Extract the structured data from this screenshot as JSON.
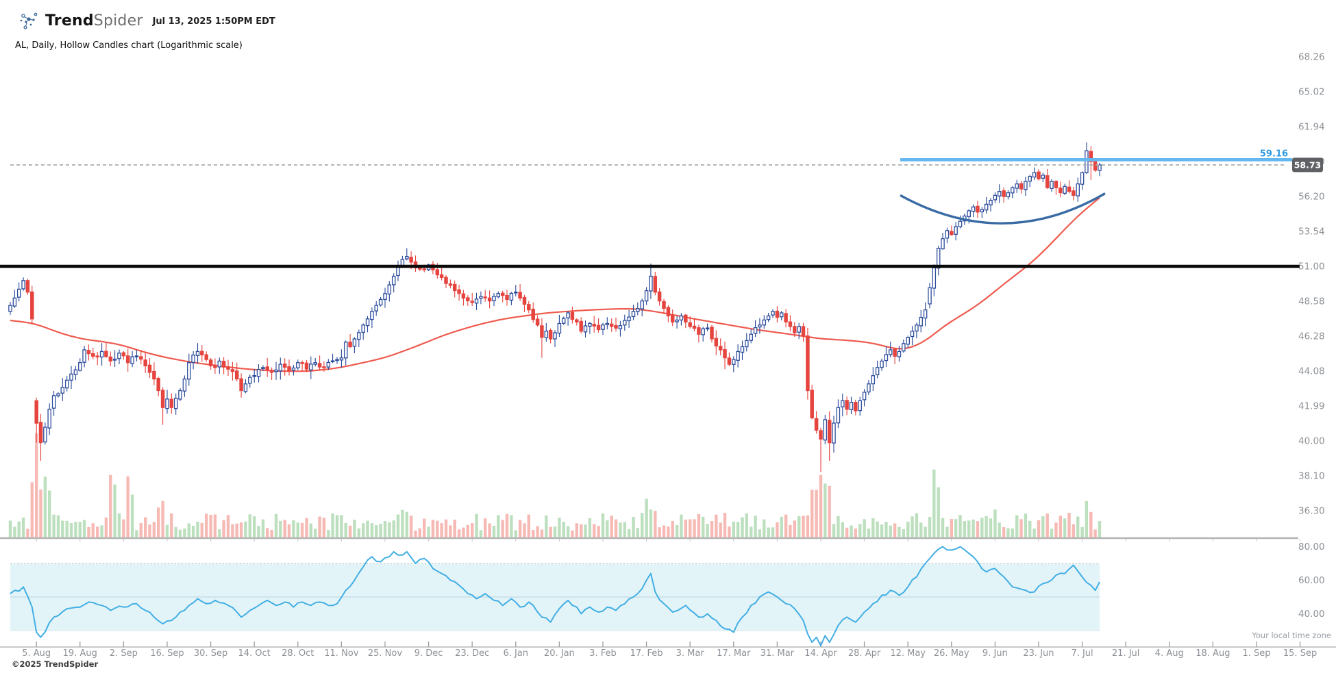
{
  "header": {
    "brand_bold": "Trend",
    "brand_light": "Spider",
    "timestamp": "Jul 13, 2025 1:50PM EDT",
    "subtitle": "AL, Daily, Hollow Candles chart (Logarithmic scale)"
  },
  "footer": {
    "copyright": "©2025 TrendSpider",
    "timezone_note": "Your local time zone"
  },
  "price_axis": {
    "labels": [
      "68.26",
      "65.02",
      "61.94",
      "59.00",
      "56.20",
      "53.54",
      "51.00",
      "48.58",
      "46.28",
      "44.08",
      "41.99",
      "40.00",
      "38.10",
      "36.30"
    ]
  },
  "indicator_axis": {
    "labels": [
      "80.00",
      "60.00",
      "40.00"
    ]
  },
  "x_axis": {
    "labels": [
      "5. Aug",
      "19. Aug",
      "2. Sep",
      "16. Sep",
      "30. Sep",
      "14. Oct",
      "28. Oct",
      "11. Nov",
      "25. Nov",
      "9. Dec",
      "23. Dec",
      "6. Jan",
      "20. Jan",
      "3. Feb",
      "17. Feb",
      "3. Mar",
      "17. Mar",
      "31. Mar",
      "14. Apr",
      "28. Apr",
      "12. May",
      "26. May",
      "9. Jun",
      "23. Jun",
      "7. Jul",
      "21. Jul",
      "4. Aug",
      "18. Aug",
      "1. Sep",
      "15. Sep"
    ]
  },
  "colors": {
    "up_candle": "#2a4a9b",
    "down_candle": "#e6443e",
    "volume_up": "#bcdfbe",
    "volume_down": "#f6b9b4",
    "sma_line": "#ef5a4e",
    "rsi_line": "#41aee4",
    "rsi_band_fill": "#e3f4f9",
    "resistance_line": "#66b7f0",
    "resistance_label": "#2f99e0",
    "black_level_line": "#0a0a0a",
    "dashed_price_line": "#ababab",
    "badge_bg": "#5f6164",
    "badge_text": "#ffffff",
    "axis_text": "#8d9196",
    "cup_annotation": "#3a6ba5"
  },
  "chart_data": {
    "type": "candlestick",
    "symbol": "AL",
    "timeframe": "Daily",
    "style": "Hollow Candles",
    "scale": "Logarithmic",
    "num_bars": 251,
    "y_ticks": [
      68.26,
      65.02,
      61.94,
      59.0,
      56.2,
      53.54,
      51.0,
      48.58,
      46.28,
      44.08,
      41.99,
      40.0,
      38.1,
      36.3
    ],
    "indicator": {
      "name": "RSI",
      "ticks": [
        80,
        60,
        40
      ],
      "band": {
        "upper": 70,
        "mid": 50,
        "lower": 30
      },
      "anchors": [
        [
          0,
          52
        ],
        [
          3,
          56
        ],
        [
          5,
          44
        ],
        [
          6,
          29
        ],
        [
          7,
          26
        ],
        [
          10,
          38
        ],
        [
          13,
          43
        ],
        [
          16,
          44
        ],
        [
          18,
          47
        ],
        [
          21,
          45
        ],
        [
          23,
          42
        ],
        [
          26,
          44
        ],
        [
          29,
          46
        ],
        [
          31,
          42
        ],
        [
          33,
          38
        ],
        [
          35,
          34
        ],
        [
          37,
          36
        ],
        [
          39,
          41
        ],
        [
          41,
          45
        ],
        [
          43,
          49
        ],
        [
          45,
          46
        ],
        [
          47,
          48
        ],
        [
          50,
          45
        ],
        [
          52,
          41
        ],
        [
          53,
          38
        ],
        [
          55,
          42
        ],
        [
          57,
          45
        ],
        [
          59,
          48
        ],
        [
          61,
          45
        ],
        [
          63,
          47
        ],
        [
          65,
          44
        ],
        [
          67,
          47
        ],
        [
          69,
          45
        ],
        [
          71,
          47
        ],
        [
          73,
          45
        ],
        [
          75,
          46
        ],
        [
          77,
          54
        ],
        [
          79,
          60
        ],
        [
          81,
          68
        ],
        [
          83,
          74
        ],
        [
          85,
          71
        ],
        [
          87,
          74
        ],
        [
          88,
          77
        ],
        [
          90,
          75
        ],
        [
          91,
          77
        ],
        [
          93,
          70
        ],
        [
          95,
          73
        ],
        [
          97,
          67
        ],
        [
          99,
          64
        ],
        [
          101,
          60
        ],
        [
          103,
          57
        ],
        [
          105,
          52
        ],
        [
          107,
          49
        ],
        [
          109,
          52
        ],
        [
          111,
          48
        ],
        [
          113,
          45
        ],
        [
          115,
          49
        ],
        [
          117,
          44
        ],
        [
          119,
          47
        ],
        [
          121,
          41
        ],
        [
          122,
          38
        ],
        [
          124,
          35
        ],
        [
          126,
          43
        ],
        [
          128,
          48
        ],
        [
          130,
          44
        ],
        [
          131,
          40
        ],
        [
          133,
          44
        ],
        [
          135,
          41
        ],
        [
          137,
          44
        ],
        [
          139,
          42
        ],
        [
          141,
          46
        ],
        [
          143,
          50
        ],
        [
          145,
          55
        ],
        [
          146,
          60
        ],
        [
          147,
          64
        ],
        [
          148,
          53
        ],
        [
          150,
          46
        ],
        [
          152,
          41
        ],
        [
          155,
          45
        ],
        [
          158,
          38
        ],
        [
          160,
          40
        ],
        [
          162,
          36
        ],
        [
          164,
          31
        ],
        [
          166,
          29
        ],
        [
          168,
          38
        ],
        [
          170,
          45
        ],
        [
          172,
          50
        ],
        [
          174,
          53
        ],
        [
          176,
          50
        ],
        [
          178,
          46
        ],
        [
          180,
          43
        ],
        [
          182,
          36
        ],
        [
          183,
          28
        ],
        [
          184,
          23
        ],
        [
          185,
          26
        ],
        [
          186,
          21
        ],
        [
          187,
          27
        ],
        [
          188,
          23
        ],
        [
          190,
          33
        ],
        [
          192,
          38
        ],
        [
          194,
          35
        ],
        [
          196,
          41
        ],
        [
          198,
          46
        ],
        [
          200,
          51
        ],
        [
          202,
          54
        ],
        [
          204,
          51
        ],
        [
          206,
          56
        ],
        [
          208,
          62
        ],
        [
          210,
          70
        ],
        [
          212,
          76
        ],
        [
          214,
          80
        ],
        [
          216,
          78
        ],
        [
          218,
          80
        ],
        [
          220,
          76
        ],
        [
          222,
          71
        ],
        [
          224,
          65
        ],
        [
          226,
          67
        ],
        [
          228,
          62
        ],
        [
          230,
          56
        ],
        [
          233,
          54
        ],
        [
          235,
          53
        ],
        [
          237,
          58
        ],
        [
          240,
          63
        ],
        [
          242,
          64
        ],
        [
          244,
          69
        ],
        [
          246,
          62
        ],
        [
          248,
          57
        ],
        [
          249,
          54
        ],
        [
          250,
          59
        ]
      ]
    },
    "price_anchors": [
      [
        0,
        48.3
      ],
      [
        1,
        48.8
      ],
      [
        2,
        49.4
      ],
      [
        3,
        50.0
      ],
      [
        4,
        49.2
      ],
      [
        5,
        47.4
      ],
      [
        6,
        41.0
      ],
      [
        7,
        39.9
      ],
      [
        9,
        41.8
      ],
      [
        10,
        42.6
      ],
      [
        12,
        43.1
      ],
      [
        14,
        43.9
      ],
      [
        16,
        44.6
      ],
      [
        17,
        45.4
      ],
      [
        19,
        45.0
      ],
      [
        21,
        45.3
      ],
      [
        23,
        44.7
      ],
      [
        25,
        45.2
      ],
      [
        27,
        44.6
      ],
      [
        29,
        45.0
      ],
      [
        31,
        44.4
      ],
      [
        33,
        43.6
      ],
      [
        34,
        42.9
      ],
      [
        35,
        41.9
      ],
      [
        36,
        42.4
      ],
      [
        37,
        41.9
      ],
      [
        39,
        42.9
      ],
      [
        40,
        43.6
      ],
      [
        41,
        44.6
      ],
      [
        43,
        45.3
      ],
      [
        45,
        44.8
      ],
      [
        47,
        44.3
      ],
      [
        48,
        44.7
      ],
      [
        50,
        44.2
      ],
      [
        52,
        43.6
      ],
      [
        53,
        42.9
      ],
      [
        54,
        43.3
      ],
      [
        56,
        43.8
      ],
      [
        58,
        44.3
      ],
      [
        60,
        44.0
      ],
      [
        62,
        44.5
      ],
      [
        64,
        44.1
      ],
      [
        66,
        44.6
      ],
      [
        68,
        44.2
      ],
      [
        70,
        44.6
      ],
      [
        72,
        44.3
      ],
      [
        74,
        44.7
      ],
      [
        76,
        44.9
      ],
      [
        77,
        45.9
      ],
      [
        78,
        45.6
      ],
      [
        79,
        46.1
      ],
      [
        80,
        46.5
      ],
      [
        81,
        47.0
      ],
      [
        82,
        47.4
      ],
      [
        83,
        47.9
      ],
      [
        84,
        48.3
      ],
      [
        85,
        48.7
      ],
      [
        86,
        49.1
      ],
      [
        87,
        49.7
      ],
      [
        88,
        50.3
      ],
      [
        89,
        51.0
      ],
      [
        90,
        51.5
      ],
      [
        91,
        51.7
      ],
      [
        92,
        51.3
      ],
      [
        94,
        50.8
      ],
      [
        96,
        51.1
      ],
      [
        98,
        50.4
      ],
      [
        100,
        49.8
      ],
      [
        102,
        49.3
      ],
      [
        104,
        48.8
      ],
      [
        106,
        48.5
      ],
      [
        108,
        48.9
      ],
      [
        110,
        48.6
      ],
      [
        112,
        49.1
      ],
      [
        114,
        48.7
      ],
      [
        116,
        49.2
      ],
      [
        117,
        48.8
      ],
      [
        119,
        48.0
      ],
      [
        121,
        47.0
      ],
      [
        122,
        46.2
      ],
      [
        123,
        46.6
      ],
      [
        124,
        46.1
      ],
      [
        126,
        47.1
      ],
      [
        128,
        47.8
      ],
      [
        130,
        47.2
      ],
      [
        131,
        46.6
      ],
      [
        133,
        47.1
      ],
      [
        135,
        46.7
      ],
      [
        137,
        47.1
      ],
      [
        139,
        46.8
      ],
      [
        141,
        47.3
      ],
      [
        143,
        47.9
      ],
      [
        145,
        48.6
      ],
      [
        146,
        49.3
      ],
      [
        147,
        50.3
      ],
      [
        148,
        49.2
      ],
      [
        149,
        48.6
      ],
      [
        150,
        48.1
      ],
      [
        151,
        47.6
      ],
      [
        152,
        47.2
      ],
      [
        154,
        47.6
      ],
      [
        156,
        46.9
      ],
      [
        158,
        46.4
      ],
      [
        160,
        46.8
      ],
      [
        161,
        46.1
      ],
      [
        163,
        45.4
      ],
      [
        164,
        44.9
      ],
      [
        165,
        44.5
      ],
      [
        166,
        44.8
      ],
      [
        167,
        45.3
      ],
      [
        168,
        45.6
      ],
      [
        169,
        46.0
      ],
      [
        170,
        46.4
      ],
      [
        172,
        47.0
      ],
      [
        174,
        47.6
      ],
      [
        175,
        47.9
      ],
      [
        176,
        47.5
      ],
      [
        177,
        47.8
      ],
      [
        178,
        47.2
      ],
      [
        179,
        46.9
      ],
      [
        180,
        46.5
      ],
      [
        181,
        46.9
      ],
      [
        182,
        46.3
      ],
      [
        183,
        42.9
      ],
      [
        184,
        41.3
      ],
      [
        185,
        40.6
      ],
      [
        186,
        40.1
      ],
      [
        187,
        41.2
      ],
      [
        188,
        39.9
      ],
      [
        189,
        41.0
      ],
      [
        190,
        41.9
      ],
      [
        191,
        42.3
      ],
      [
        192,
        41.8
      ],
      [
        193,
        42.2
      ],
      [
        194,
        41.7
      ],
      [
        195,
        42.3
      ],
      [
        196,
        42.8
      ],
      [
        197,
        43.3
      ],
      [
        198,
        43.8
      ],
      [
        199,
        44.3
      ],
      [
        200,
        44.7
      ],
      [
        201,
        45.1
      ],
      [
        202,
        45.4
      ],
      [
        203,
        45.0
      ],
      [
        204,
        45.3
      ],
      [
        205,
        45.8
      ],
      [
        206,
        46.2
      ],
      [
        207,
        46.6
      ],
      [
        208,
        47.0
      ],
      [
        209,
        47.5
      ],
      [
        210,
        48.0
      ],
      [
        211,
        49.5
      ],
      [
        212,
        50.9
      ],
      [
        213,
        52.3
      ],
      [
        214,
        53.0
      ],
      [
        215,
        53.6
      ],
      [
        216,
        53.3
      ],
      [
        217,
        53.9
      ],
      [
        218,
        54.3
      ],
      [
        219,
        54.7
      ],
      [
        220,
        55.1
      ],
      [
        221,
        55.4
      ],
      [
        222,
        55.0
      ],
      [
        223,
        55.2
      ],
      [
        224,
        55.6
      ],
      [
        225,
        55.9
      ],
      [
        226,
        56.3
      ],
      [
        227,
        56.6
      ],
      [
        228,
        56.2
      ],
      [
        229,
        56.5
      ],
      [
        230,
        56.9
      ],
      [
        231,
        57.2
      ],
      [
        232,
        56.8
      ],
      [
        233,
        57.4
      ],
      [
        234,
        57.8
      ],
      [
        235,
        58.1
      ],
      [
        236,
        57.6
      ],
      [
        237,
        57.9
      ],
      [
        238,
        56.9
      ],
      [
        239,
        57.4
      ],
      [
        240,
        56.9
      ],
      [
        241,
        56.5
      ],
      [
        242,
        57.0
      ],
      [
        243,
        56.6
      ],
      [
        244,
        56.3
      ],
      [
        245,
        57.2
      ],
      [
        246,
        58.1
      ],
      [
        247,
        59.9
      ],
      [
        248,
        59.0
      ],
      [
        249,
        58.3
      ],
      [
        250,
        58.73
      ]
    ],
    "open_overrides": {
      "6": 42.3,
      "211": 48.4
    },
    "high_overrides": {
      "91": 52.3,
      "147": 51.2,
      "247": 60.6
    },
    "low_overrides": {
      "6": 39.9,
      "7": 38.9,
      "35": 40.9,
      "122": 44.9,
      "164": 44.2,
      "186": 38.3,
      "188": 38.9,
      "248": 57.5
    },
    "volume_spikes": {
      "5": 3.5,
      "6": 6.5,
      "7": 5.0,
      "8": 2.5,
      "9": 2.0,
      "23": 2.6,
      "24": 3.2,
      "25": 2.4,
      "26": 2.0,
      "27": 2.8,
      "28": 2.2,
      "34": 1.8,
      "35": 2.0,
      "90": 1.6,
      "91": 1.8,
      "146": 1.6,
      "147": 1.9,
      "148": 1.7,
      "183": 2.4,
      "184": 2.9,
      "185": 2.1,
      "186": 3.2,
      "187": 2.5,
      "188": 2.1,
      "190": 1.7,
      "211": 2.2,
      "212": 2.8,
      "213": 2.5,
      "214": 1.9,
      "215": 1.5,
      "226": 1.9,
      "227": 1.4,
      "246": 1.3,
      "247": 1.5,
      "248": 1.4
    },
    "sma_anchors": [
      [
        0,
        47.3
      ],
      [
        6,
        47.1
      ],
      [
        10,
        46.6
      ],
      [
        16,
        46.1
      ],
      [
        22,
        45.9
      ],
      [
        26,
        45.7
      ],
      [
        30,
        45.3
      ],
      [
        36,
        44.9
      ],
      [
        42,
        44.6
      ],
      [
        48,
        44.4
      ],
      [
        54,
        44.2
      ],
      [
        60,
        44.1
      ],
      [
        66,
        44.05
      ],
      [
        70,
        44.1
      ],
      [
        76,
        44.3
      ],
      [
        86,
        44.9
      ],
      [
        93,
        45.6
      ],
      [
        100,
        46.4
      ],
      [
        107,
        47.0
      ],
      [
        113,
        47.4
      ],
      [
        123,
        47.8
      ],
      [
        133,
        48.0
      ],
      [
        143,
        48.1
      ],
      [
        150,
        47.8
      ],
      [
        155,
        47.5
      ],
      [
        163,
        47.1
      ],
      [
        171,
        46.7
      ],
      [
        179,
        46.4
      ],
      [
        186,
        46.1
      ],
      [
        193,
        46.0
      ],
      [
        199,
        45.8
      ],
      [
        202,
        45.5
      ],
      [
        205,
        45.35
      ],
      [
        210,
        45.9
      ],
      [
        214,
        46.9
      ],
      [
        218,
        47.6
      ],
      [
        221,
        48.1
      ],
      [
        225,
        49.0
      ],
      [
        229,
        50.0
      ],
      [
        233,
        50.9
      ],
      [
        236,
        51.7
      ],
      [
        240,
        53.0
      ],
      [
        244,
        54.4
      ],
      [
        247,
        55.3
      ],
      [
        250,
        56.1
      ]
    ],
    "annotations": {
      "resistance_level": 59.16,
      "resistance_label": "59.16",
      "last_price": 58.73,
      "last_price_label": "58.73",
      "black_level": 51.0,
      "cup_pattern": {
        "p_start": 56.3,
        "p_bottom": 54.15,
        "p_end": 56.45
      }
    }
  }
}
